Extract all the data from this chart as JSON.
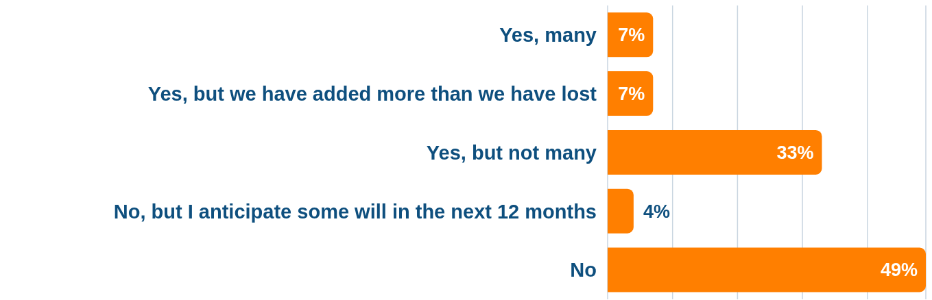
{
  "chart_data": {
    "type": "bar",
    "orientation": "horizontal",
    "categories": [
      "Yes, many",
      "Yes, but we have added more than we have lost",
      "Yes, but not many",
      "No, but I anticipate some will in the next 12 months",
      "No"
    ],
    "values": [
      7,
      7,
      33,
      4,
      49
    ],
    "value_labels": [
      "7%",
      "7%",
      "33%",
      "4%",
      "49%"
    ],
    "color": "#ff7f00",
    "xlim": [
      0,
      49
    ],
    "grid": "x",
    "tick_labels": "y"
  }
}
